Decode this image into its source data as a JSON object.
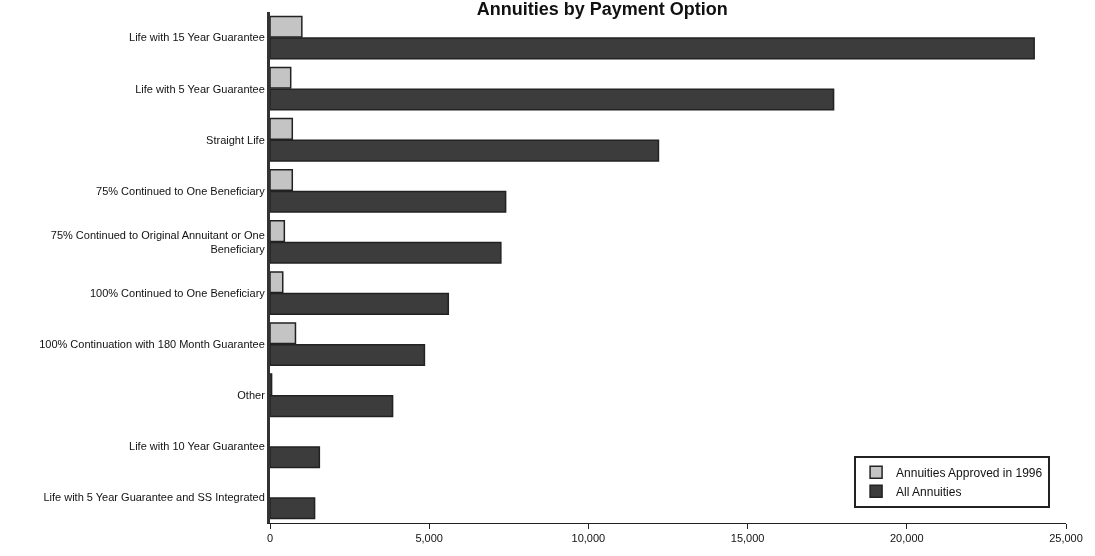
{
  "chart_data": {
    "type": "bar",
    "orientation": "horizontal",
    "title": "Annuities by Payment Option",
    "categories": [
      "Life with 15 Year Guarantee",
      "Life with 5 Year Guarantee",
      "Straight Life",
      "75% Continued to One Beneficiary",
      "75% Continued to Original Annuitant or One Beneficiary",
      "100% Continued to One Beneficiary",
      "100% Continuation with 180 Month Guarantee",
      "Other",
      "Life with 10 Year Guarantee",
      "Life with 5 Year Guarantee and SS Integrated"
    ],
    "series": [
      {
        "name": "Annuities Approved in 1996",
        "color": "#c4c4c4",
        "values": [
          1000,
          650,
          700,
          700,
          450,
          400,
          800,
          50,
          null,
          null
        ]
      },
      {
        "name": "All Annuities",
        "color": "#3c3c3c",
        "values": [
          24000,
          17700,
          12200,
          7400,
          7250,
          5600,
          4850,
          3850,
          1550,
          1400
        ]
      }
    ],
    "xlim": [
      0,
      25000
    ],
    "xticks": [
      {
        "value": 0,
        "label": "0"
      },
      {
        "value": 5000,
        "label": "5,000"
      },
      {
        "value": 10000,
        "label": "10,000"
      },
      {
        "value": 15000,
        "label": "15,000"
      },
      {
        "value": 20000,
        "label": "20,000"
      },
      {
        "value": 25000,
        "label": "25,000"
      }
    ],
    "grid": false,
    "legend": "bottom right"
  }
}
